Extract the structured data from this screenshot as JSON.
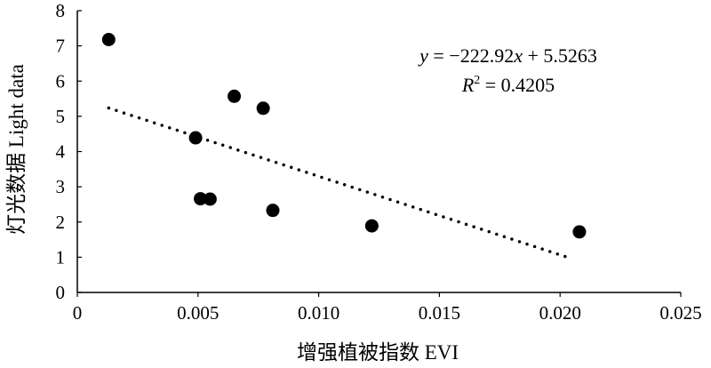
{
  "chart_data": {
    "type": "scatter",
    "xlabel": "增强植被指数 EVI",
    "ylabel": "灯光数据 Light data",
    "xlim": [
      0,
      0.025
    ],
    "ylim": [
      0,
      8
    ],
    "x_ticks": [
      0,
      0.005,
      0.01,
      0.015,
      0.02,
      0.025
    ],
    "x_tick_labels": [
      "0",
      "0.005",
      "0.010",
      "0.015",
      "0.020",
      "0.025"
    ],
    "y_ticks": [
      0,
      1,
      2,
      3,
      4,
      5,
      6,
      7,
      8
    ],
    "y_tick_labels": [
      "0",
      "1",
      "2",
      "3",
      "4",
      "5",
      "6",
      "7",
      "8"
    ],
    "grid": false,
    "legend": "none",
    "points": [
      {
        "x": 0.0013,
        "y": 7.18
      },
      {
        "x": 0.0049,
        "y": 4.39
      },
      {
        "x": 0.0051,
        "y": 2.66
      },
      {
        "x": 0.0055,
        "y": 2.65
      },
      {
        "x": 0.0065,
        "y": 5.57
      },
      {
        "x": 0.0077,
        "y": 5.23
      },
      {
        "x": 0.0081,
        "y": 2.33
      },
      {
        "x": 0.0122,
        "y": 1.89
      },
      {
        "x": 0.0208,
        "y": 1.72
      }
    ],
    "trendline": {
      "type": "linear",
      "slope": -222.92,
      "intercept": 5.5263,
      "x_range": [
        0.0013,
        0.0204
      ],
      "style": "dotted"
    },
    "annotation": {
      "equation_y": "y",
      "equation_x": "x",
      "equation_rhs_part1": " = −222.92",
      "equation_rhs_part2": " + 5.5263",
      "r2_symbol": "R",
      "r2_power": "2",
      "r2_value": " = 0.4205"
    },
    "colors": {
      "points": "#000000",
      "trendline": "#000000",
      "axes": "#000000"
    }
  }
}
